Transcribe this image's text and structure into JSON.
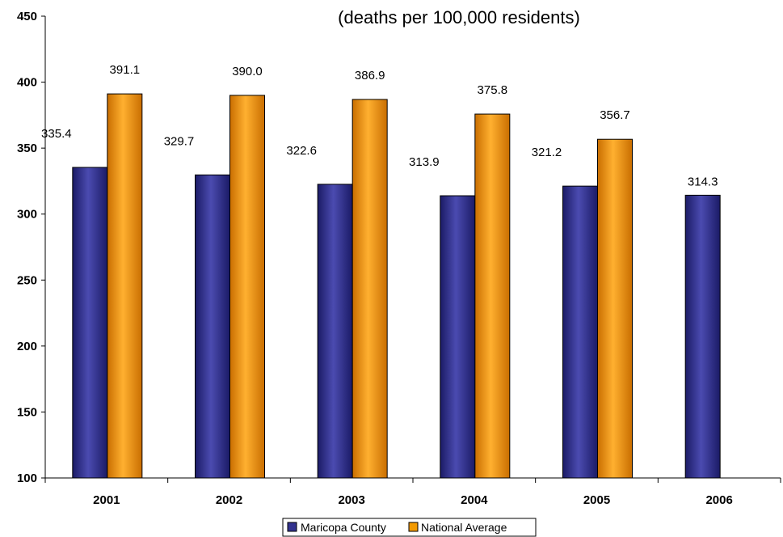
{
  "chart_data": {
    "type": "bar",
    "title": "",
    "subtitle": "(deaths per 100,000 residents)",
    "xlabel": "",
    "ylabel": "",
    "categories": [
      "2001",
      "2002",
      "2003",
      "2004",
      "2005",
      "2006"
    ],
    "series": [
      {
        "name": "Maricopa County",
        "color": "#33338F",
        "values": [
          335.4,
          329.7,
          322.6,
          313.9,
          321.2,
          314.3
        ],
        "labels": [
          "335.4",
          "329.7",
          "322.6",
          "313.9",
          "321.2",
          "314.3"
        ]
      },
      {
        "name": "National Average",
        "color": "#F39A00",
        "values": [
          391.1,
          390.0,
          386.9,
          375.8,
          356.7,
          null
        ],
        "labels": [
          "391.1",
          "390.0",
          "386.9",
          "375.8",
          "356.7",
          null
        ]
      }
    ],
    "ylim": [
      100,
      450
    ],
    "yticks": [
      "100",
      "150",
      "200",
      "250",
      "300",
      "350",
      "400",
      "450"
    ],
    "grid": false,
    "legend_position": "bottom-center"
  }
}
